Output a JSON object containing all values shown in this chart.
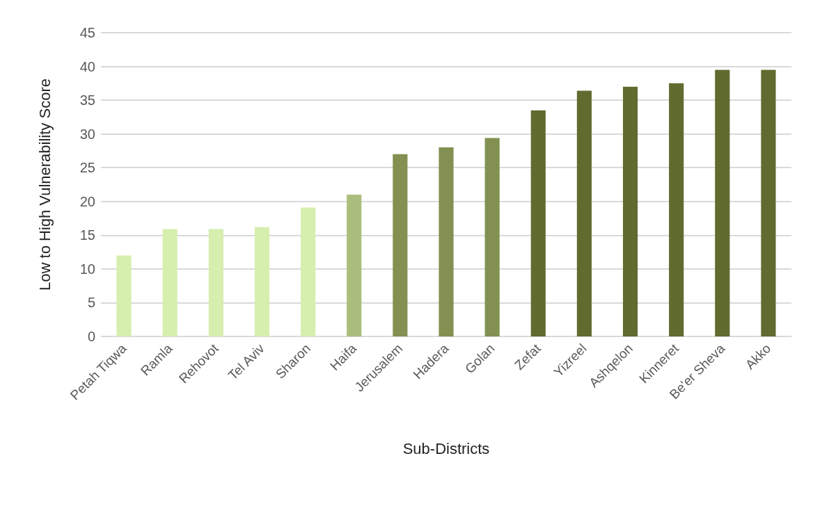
{
  "chart_data": {
    "type": "bar",
    "xlabel": "Sub-Districts",
    "ylabel": "Low to High Vulnerability Score",
    "categories": [
      "Petah Tiqwa",
      "Ramla",
      "Rehovot",
      "Tel Aviv",
      "Sharon",
      "Haifa",
      "Jerusalem",
      "Hadera",
      "Golan",
      "Zefat",
      "Yizreel",
      "Ashqelon",
      "Kinneret",
      "Be'er Sheva",
      "Akko"
    ],
    "values": [
      12,
      15.9,
      15.9,
      16.2,
      19.1,
      21,
      27,
      28,
      29.4,
      33.5,
      36.4,
      37,
      37.5,
      39.5,
      39.5
    ],
    "colors": [
      "#d6eeae",
      "#d6eeae",
      "#d6eeae",
      "#d6eeae",
      "#d6eeae",
      "#abbd7d",
      "#829151",
      "#829151",
      "#829151",
      "#626b2f",
      "#626b2f",
      "#626b2f",
      "#626b2f",
      "#626b2f",
      "#626b2f"
    ],
    "ylim": [
      0,
      45
    ],
    "yticks": [
      0,
      5,
      10,
      15,
      20,
      25,
      30,
      35,
      40,
      45
    ],
    "grid": "y"
  }
}
